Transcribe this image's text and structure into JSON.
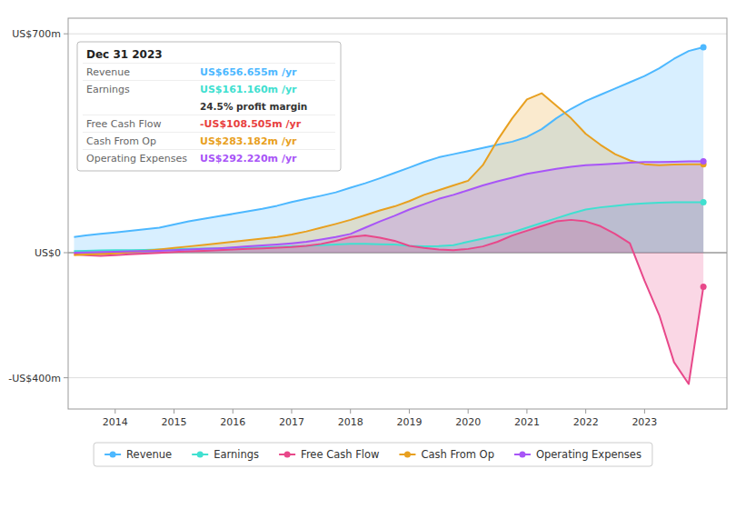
{
  "chart_data": {
    "type": "area",
    "x": [
      2013.3,
      2013.5,
      2013.75,
      2014.0,
      2014.25,
      2014.5,
      2014.75,
      2015.0,
      2015.25,
      2015.5,
      2015.75,
      2016.0,
      2016.25,
      2016.5,
      2016.75,
      2017.0,
      2017.25,
      2017.5,
      2017.75,
      2018.0,
      2018.25,
      2018.5,
      2018.75,
      2019.0,
      2019.25,
      2019.5,
      2019.75,
      2020.0,
      2020.25,
      2020.5,
      2020.75,
      2021.0,
      2021.25,
      2021.5,
      2021.75,
      2022.0,
      2022.25,
      2022.5,
      2022.75,
      2023.0,
      2023.25,
      2023.5,
      2023.75,
      2024.0
    ],
    "series": [
      {
        "name": "Revenue",
        "color": "#4db8ff",
        "values": [
          50,
          55,
          60,
          65,
          70,
          75,
          80,
          90,
          100,
          108,
          116,
          124,
          132,
          140,
          150,
          162,
          172,
          182,
          193,
          208,
          222,
          238,
          255,
          272,
          290,
          305,
          315,
          325,
          335,
          345,
          355,
          370,
          395,
          430,
          460,
          485,
          505,
          525,
          545,
          565,
          590,
          620,
          645,
          657
        ]
      },
      {
        "name": "Earnings",
        "color": "#40e0d0",
        "values": [
          5,
          6,
          7,
          8,
          8,
          9,
          10,
          11,
          12,
          13,
          14,
          15,
          16,
          17,
          18,
          20,
          22,
          24,
          26,
          28,
          28,
          27,
          26,
          22,
          20,
          21,
          24,
          35,
          45,
          55,
          65,
          80,
          95,
          110,
          125,
          138,
          145,
          150,
          155,
          158,
          160,
          161,
          161,
          161
        ]
      },
      {
        "name": "Free Cash Flow",
        "color": "#e8488a",
        "values": [
          -5,
          -8,
          -10,
          -8,
          -5,
          -3,
          -1,
          2,
          4,
          6,
          8,
          10,
          12,
          14,
          16,
          18,
          22,
          28,
          38,
          50,
          55,
          48,
          38,
          22,
          15,
          10,
          8,
          12,
          20,
          35,
          55,
          70,
          85,
          100,
          105,
          100,
          85,
          60,
          30,
          -90,
          -200,
          -350,
          -420,
          -109
        ]
      },
      {
        "name": "Cash From Op",
        "color": "#e8a020",
        "values": [
          -8,
          -6,
          -4,
          -2,
          2,
          6,
          10,
          15,
          20,
          25,
          30,
          35,
          40,
          45,
          50,
          58,
          68,
          80,
          92,
          105,
          120,
          135,
          148,
          165,
          185,
          200,
          215,
          230,
          280,
          360,
          430,
          490,
          510,
          470,
          430,
          380,
          345,
          315,
          295,
          283,
          280,
          282,
          283,
          283
        ]
      },
      {
        "name": "Operating Expenses",
        "color": "#a855f7",
        "values": [
          0,
          1,
          2,
          3,
          4,
          5,
          6,
          8,
          10,
          12,
          14,
          17,
          20,
          23,
          26,
          30,
          35,
          42,
          50,
          60,
          80,
          100,
          118,
          138,
          155,
          172,
          185,
          200,
          215,
          228,
          240,
          252,
          260,
          268,
          275,
          280,
          282,
          285,
          288,
          290,
          290,
          291,
          292,
          292
        ]
      }
    ],
    "xlim": [
      2013.2,
      2024.4
    ],
    "xticks": [
      2014,
      2015,
      2016,
      2017,
      2018,
      2019,
      2020,
      2021,
      2022,
      2023
    ],
    "ylim": [
      -500,
      750
    ],
    "yticks": [
      {
        "value": -400,
        "label": "-US$400m"
      },
      {
        "value": 0,
        "label": "US$0"
      },
      {
        "value": 700,
        "label": "US$700m"
      }
    ],
    "grid": true,
    "legend": "bottom",
    "annotations": [
      {
        "text": "Dec 31 2023"
      },
      {
        "label": "Revenue",
        "text": "US$656.655m /yr",
        "color": "#4db8ff"
      },
      {
        "label": "Earnings",
        "text": "US$161.160m /yr",
        "color": "#40e0d0"
      },
      {
        "text": "24.5% profit margin"
      },
      {
        "label": "Free Cash Flow",
        "text": "-US$108.505m /yr",
        "color": "#e84040"
      },
      {
        "label": "Cash From Op",
        "text": "US$283.182m /yr",
        "color": "#e8a020"
      },
      {
        "label": "Operating Expenses",
        "text": "US$292.220m /yr",
        "color": "#a855f7"
      }
    ]
  }
}
